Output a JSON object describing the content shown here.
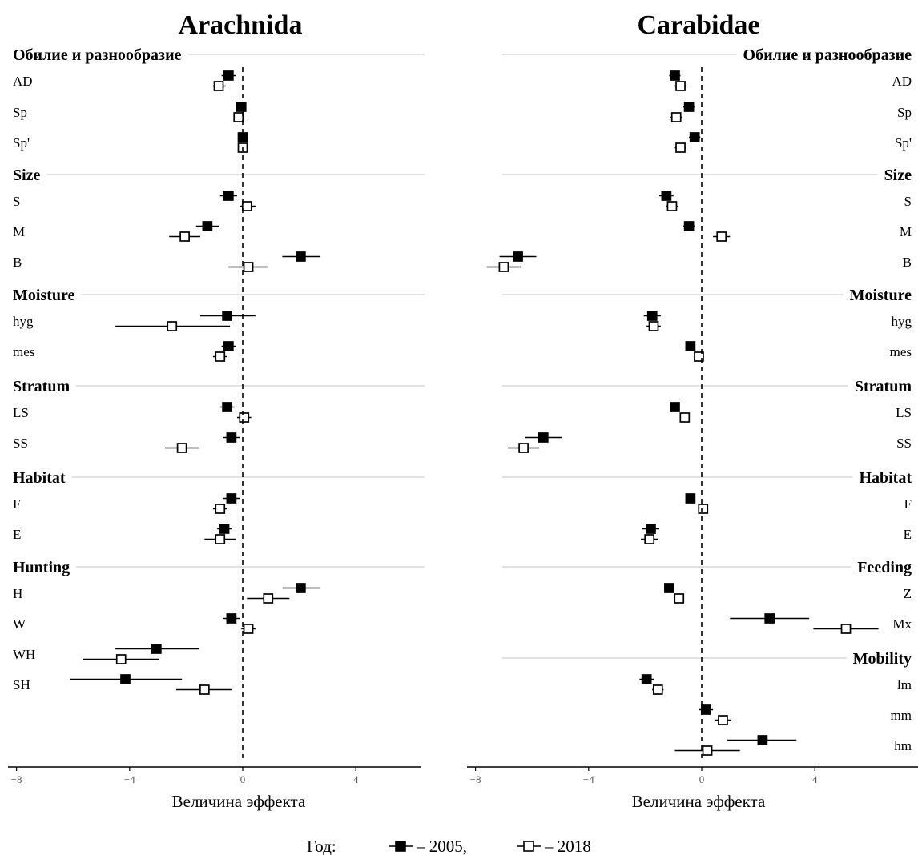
{
  "legend": {
    "title": "Год:",
    "items": [
      {
        "label": "– 2005,",
        "marker": "filled-square"
      },
      {
        "label": "– 2018",
        "marker": "open-square"
      }
    ]
  },
  "colors": {
    "marker": "#000000",
    "open_fill": "#ffffff",
    "group_rule": "#d0d0d0",
    "axis": "#000000"
  },
  "chart_data": [
    {
      "type": "forest",
      "title": "Arachnida",
      "xlabel": "Величина эффекта",
      "xlim": [
        -8.3,
        6.3
      ],
      "xticks": [
        -8,
        -4,
        0,
        4
      ],
      "tick_labels": [
        "−8",
        "−4",
        "0",
        "4"
      ],
      "reference_line": 0,
      "series": [
        {
          "name": "2005",
          "marker": "filled-square"
        },
        {
          "name": "2018",
          "marker": "open-square"
        }
      ],
      "groups": [
        {
          "name": "Обилие и разнообразие",
          "rows": [
            {
              "label": "AD",
              "2005": {
                "est": -0.5,
                "lo": -0.75,
                "hi": -0.25
              },
              "2018": {
                "est": -0.85,
                "lo": -1.05,
                "hi": -0.6
              }
            },
            {
              "label": "Sp",
              "2005": {
                "est": -0.05,
                "lo": -0.2,
                "hi": 0.1
              },
              "2018": {
                "est": -0.15,
                "lo": -0.3,
                "hi": 0.05
              }
            },
            {
              "label": "Sp'",
              "2005": {
                "est": 0.0,
                "lo": -0.15,
                "hi": 0.15
              },
              "2018": {
                "est": 0.0,
                "lo": -0.15,
                "hi": 0.15
              }
            }
          ]
        },
        {
          "name": "Size",
          "rows": [
            {
              "label": "S",
              "2005": {
                "est": -0.5,
                "lo": -0.8,
                "hi": -0.2
              },
              "2018": {
                "est": 0.15,
                "lo": -0.1,
                "hi": 0.45
              }
            },
            {
              "label": "M",
              "2005": {
                "est": -1.25,
                "lo": -1.65,
                "hi": -0.85
              },
              "2018": {
                "est": -2.05,
                "lo": -2.6,
                "hi": -1.5
              }
            },
            {
              "label": "B",
              "2005": {
                "est": 2.05,
                "lo": 1.4,
                "hi": 2.75
              },
              "2018": {
                "est": 0.2,
                "lo": -0.5,
                "hi": 0.9
              }
            }
          ]
        },
        {
          "name": "Moisture",
          "rows": [
            {
              "label": "hyg",
              "2005": {
                "est": -0.55,
                "lo": -1.5,
                "hi": 0.45
              },
              "2018": {
                "est": -2.5,
                "lo": -4.5,
                "hi": -0.45
              }
            },
            {
              "label": "mes",
              "2005": {
                "est": -0.5,
                "lo": -0.75,
                "hi": -0.25
              },
              "2018": {
                "est": -0.8,
                "lo": -1.05,
                "hi": -0.55
              }
            }
          ]
        },
        {
          "name": "Stratum",
          "rows": [
            {
              "label": "LS",
              "2005": {
                "est": -0.55,
                "lo": -0.8,
                "hi": -0.3
              },
              "2018": {
                "est": 0.05,
                "lo": -0.2,
                "hi": 0.3
              }
            },
            {
              "label": "SS",
              "2005": {
                "est": -0.4,
                "lo": -0.7,
                "hi": -0.1
              },
              "2018": {
                "est": -2.15,
                "lo": -2.75,
                "hi": -1.55
              }
            }
          ]
        },
        {
          "name": "Habitat",
          "rows": [
            {
              "label": "F",
              "2005": {
                "est": -0.4,
                "lo": -0.7,
                "hi": -0.1
              },
              "2018": {
                "est": -0.8,
                "lo": -1.05,
                "hi": -0.55
              }
            },
            {
              "label": "E",
              "2005": {
                "est": -0.65,
                "lo": -0.9,
                "hi": -0.4
              },
              "2018": {
                "est": -0.8,
                "lo": -1.35,
                "hi": -0.25
              }
            }
          ]
        },
        {
          "name": "Hunting",
          "rows": [
            {
              "label": "H",
              "2005": {
                "est": 2.05,
                "lo": 1.4,
                "hi": 2.75
              },
              "2018": {
                "est": 0.9,
                "lo": 0.15,
                "hi": 1.65
              }
            },
            {
              "label": "W",
              "2005": {
                "est": -0.4,
                "lo": -0.7,
                "hi": -0.1
              },
              "2018": {
                "est": 0.2,
                "lo": -0.05,
                "hi": 0.45
              }
            },
            {
              "label": "WH",
              "2005": {
                "est": -3.05,
                "lo": -4.5,
                "hi": -1.55
              },
              "2018": {
                "est": -4.3,
                "lo": -5.65,
                "hi": -2.95
              }
            },
            {
              "label": "SH",
              "2005": {
                "est": -4.15,
                "lo": -6.1,
                "hi": -2.15
              },
              "2018": {
                "est": -1.35,
                "lo": -2.35,
                "hi": -0.4
              }
            }
          ]
        }
      ]
    },
    {
      "type": "forest",
      "title": "Carabidae",
      "xlabel": "Величина эффекта",
      "xlim": [
        -8.3,
        7.8
      ],
      "xticks": [
        -8,
        -4,
        0,
        4
      ],
      "tick_labels": [
        "−8",
        "−4",
        "0",
        "4"
      ],
      "reference_line": 0,
      "series": [
        {
          "name": "2005",
          "marker": "filled-square"
        },
        {
          "name": "2018",
          "marker": "open-square"
        }
      ],
      "groups": [
        {
          "name": "Обилие и разнообразие",
          "rows": [
            {
              "label": "AD",
              "2005": {
                "est": -0.95,
                "lo": -1.15,
                "hi": -0.75
              },
              "2018": {
                "est": -0.75,
                "lo": -0.95,
                "hi": -0.55
              }
            },
            {
              "label": "Sp",
              "2005": {
                "est": -0.45,
                "lo": -0.65,
                "hi": -0.25
              },
              "2018": {
                "est": -0.9,
                "lo": -1.1,
                "hi": -0.7
              }
            },
            {
              "label": "Sp'",
              "2005": {
                "est": -0.25,
                "lo": -0.45,
                "hi": -0.05
              },
              "2018": {
                "est": -0.75,
                "lo": -0.95,
                "hi": -0.55
              }
            }
          ]
        },
        {
          "name": "Size",
          "rows": [
            {
              "label": "S",
              "2005": {
                "est": -1.25,
                "lo": -1.5,
                "hi": -1.0
              },
              "2018": {
                "est": -1.05,
                "lo": -1.25,
                "hi": -0.85
              }
            },
            {
              "label": "M",
              "2005": {
                "est": -0.45,
                "lo": -0.65,
                "hi": -0.25
              },
              "2018": {
                "est": 0.7,
                "lo": 0.4,
                "hi": 1.0
              }
            },
            {
              "label": "B",
              "2005": {
                "est": -6.5,
                "lo": -7.15,
                "hi": -5.85
              },
              "2018": {
                "est": -7.0,
                "lo": -7.6,
                "hi": -6.4
              }
            }
          ]
        },
        {
          "name": "Moisture",
          "rows": [
            {
              "label": "hyg",
              "2005": {
                "est": -1.75,
                "lo": -2.05,
                "hi": -1.45
              },
              "2018": {
                "est": -1.7,
                "lo": -1.95,
                "hi": -1.45
              }
            },
            {
              "label": "mes",
              "2005": {
                "est": -0.4,
                "lo": -0.55,
                "hi": -0.25
              },
              "2018": {
                "est": -0.1,
                "lo": -0.25,
                "hi": 0.05
              }
            }
          ]
        },
        {
          "name": "Stratum",
          "rows": [
            {
              "label": "LS",
              "2005": {
                "est": -0.95,
                "lo": -1.1,
                "hi": -0.8
              },
              "2018": {
                "est": -0.6,
                "lo": -0.75,
                "hi": -0.45
              }
            },
            {
              "label": "SS",
              "2005": {
                "est": -5.6,
                "lo": -6.25,
                "hi": -4.95
              },
              "2018": {
                "est": -6.3,
                "lo": -6.85,
                "hi": -5.75
              }
            }
          ]
        },
        {
          "name": "Habitat",
          "rows": [
            {
              "label": "F",
              "2005": {
                "est": -0.4,
                "lo": -0.55,
                "hi": -0.25
              },
              "2018": {
                "est": 0.05,
                "lo": -0.1,
                "hi": 0.2
              }
            },
            {
              "label": "E",
              "2005": {
                "est": -1.8,
                "lo": -2.1,
                "hi": -1.5
              },
              "2018": {
                "est": -1.85,
                "lo": -2.15,
                "hi": -1.55
              }
            }
          ]
        },
        {
          "name": "Feeding",
          "rows": [
            {
              "label": "Z",
              "2005": {
                "est": -1.15,
                "lo": -1.3,
                "hi": -1.0
              },
              "2018": {
                "est": -0.8,
                "lo": -0.95,
                "hi": -0.65
              }
            },
            {
              "label": "Mx",
              "2005": {
                "est": 2.4,
                "lo": 1.0,
                "hi": 3.8
              },
              "2018": {
                "est": 5.1,
                "lo": 3.95,
                "hi": 6.25
              }
            }
          ]
        },
        {
          "name": "Mobility",
          "rows": [
            {
              "label": "lm",
              "2005": {
                "est": -1.95,
                "lo": -2.2,
                "hi": -1.7
              },
              "2018": {
                "est": -1.55,
                "lo": -1.75,
                "hi": -1.35
              }
            },
            {
              "label": "mm",
              "2005": {
                "est": 0.15,
                "lo": -0.1,
                "hi": 0.4
              },
              "2018": {
                "est": 0.75,
                "lo": 0.45,
                "hi": 1.05
              }
            },
            {
              "label": "hm",
              "2005": {
                "est": 2.15,
                "lo": 0.9,
                "hi": 3.35
              },
              "2018": {
                "est": 0.2,
                "lo": -0.95,
                "hi": 1.35
              }
            }
          ]
        }
      ]
    }
  ]
}
